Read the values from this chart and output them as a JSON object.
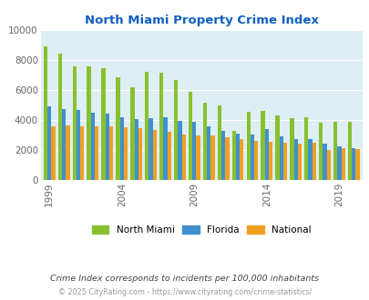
{
  "title": "North Miami Property Crime Index",
  "title_color": "#1060c0",
  "years": [
    1999,
    2000,
    2001,
    2002,
    2003,
    2004,
    2005,
    2006,
    2007,
    2008,
    2009,
    2010,
    2011,
    2012,
    2013,
    2014,
    2015,
    2016,
    2017,
    2018,
    2019,
    2020
  ],
  "north_miami": [
    8900,
    8400,
    7600,
    7600,
    7450,
    6850,
    6200,
    7200,
    7150,
    6650,
    5850,
    5150,
    4950,
    3300,
    4550,
    4600,
    4300,
    4150,
    4200,
    3800,
    3850,
    3900
  ],
  "florida": [
    4900,
    4750,
    4650,
    4500,
    4450,
    4200,
    4050,
    4100,
    4200,
    3950,
    3900,
    3550,
    3300,
    3100,
    3050,
    3400,
    2900,
    2750,
    2700,
    2450,
    2250,
    2150
  ],
  "national": [
    3600,
    3650,
    3600,
    3600,
    3550,
    3500,
    3450,
    3350,
    3200,
    3050,
    3000,
    2950,
    2850,
    2700,
    2600,
    2550,
    2500,
    2450,
    2500,
    2000,
    2100,
    2050
  ],
  "north_miami_color": "#88c030",
  "florida_color": "#4090d0",
  "national_color": "#f0a020",
  "bg_color": "#ddeef5",
  "ylim": [
    0,
    10000
  ],
  "yticks": [
    0,
    2000,
    4000,
    6000,
    8000,
    10000
  ],
  "xtick_labels": [
    "1999",
    "2004",
    "2009",
    "2014",
    "2019"
  ],
  "xtick_positions": [
    0,
    5,
    10,
    15,
    20
  ],
  "footnote1": "Crime Index corresponds to incidents per 100,000 inhabitants",
  "footnote2": "© 2025 CityRating.com - https://www.cityrating.com/crime-statistics/",
  "footnote1_color": "#444444",
  "footnote2_color": "#999999",
  "bar_width": 0.27
}
